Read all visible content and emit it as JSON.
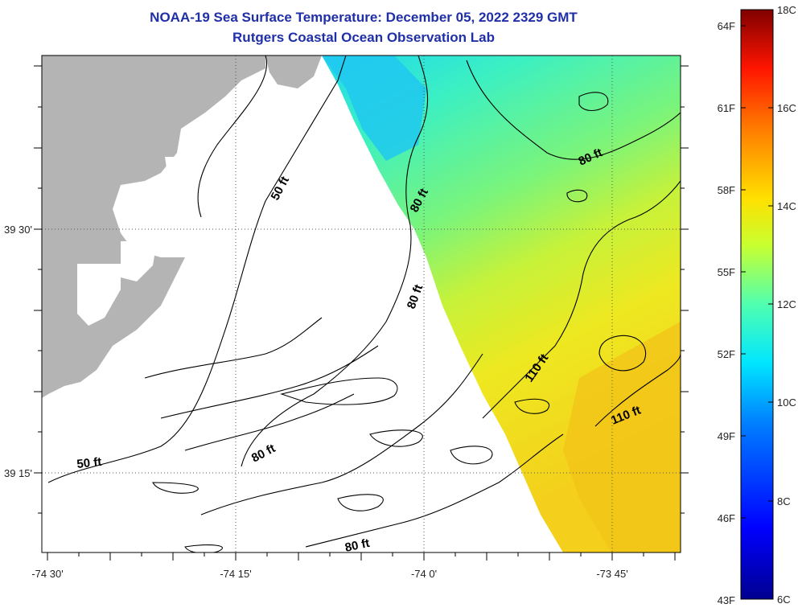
{
  "header": {
    "title": "NOAA-19 Sea Surface Temperature:  December 05, 2022 2329 GMT",
    "subtitle": "Rutgers Coastal Ocean Observation Lab"
  },
  "map": {
    "longitude_labels": [
      "-74 30'",
      "-74 15'",
      "-74 0'",
      "-73 45'"
    ],
    "latitude_labels": [
      "39 30'",
      "39 15'"
    ],
    "land_color": "#b4b4b4",
    "no_data_color": "#ffffff",
    "contour_labels": [
      {
        "text": "50 ft",
        "depth_ft": 50
      },
      {
        "text": "50 ft",
        "depth_ft": 50
      },
      {
        "text": "80 ft",
        "depth_ft": 80
      },
      {
        "text": "80 ft",
        "depth_ft": 80
      },
      {
        "text": "80 ft",
        "depth_ft": 80
      },
      {
        "text": "80 ft",
        "depth_ft": 80
      },
      {
        "text": "80 ft",
        "depth_ft": 80
      },
      {
        "text": "110 ft",
        "depth_ft": 110
      },
      {
        "text": "110 ft",
        "depth_ft": 110
      }
    ]
  },
  "colorbar": {
    "fahrenheit_labels": [
      "64F",
      "61F",
      "58F",
      "55F",
      "52F",
      "49F",
      "46F",
      "43F"
    ],
    "celsius_labels": [
      "18C",
      "16C",
      "14C",
      "12C",
      "10C",
      "8C",
      "6C"
    ],
    "min_c": 6,
    "max_c": 18
  }
}
